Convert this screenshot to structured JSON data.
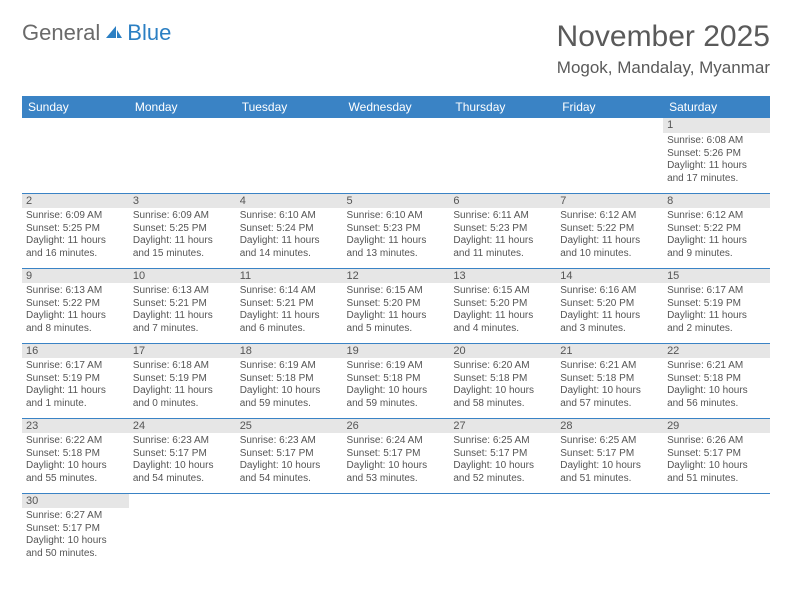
{
  "logo": {
    "general": "General",
    "blue": "Blue"
  },
  "header": {
    "month_title": "November 2025",
    "location": "Mogok, Mandalay, Myanmar"
  },
  "colors": {
    "header_bg": "#3a83c5",
    "header_text": "#ffffff",
    "daynum_bg": "#e6e6e6",
    "border": "#3a83c5",
    "text": "#555555"
  },
  "days_of_week": [
    "Sunday",
    "Monday",
    "Tuesday",
    "Wednesday",
    "Thursday",
    "Friday",
    "Saturday"
  ],
  "weeks": [
    [
      null,
      null,
      null,
      null,
      null,
      null,
      {
        "n": "1",
        "sr": "Sunrise: 6:08 AM",
        "ss": "Sunset: 5:26 PM",
        "dl": "Daylight: 11 hours and 17 minutes."
      }
    ],
    [
      {
        "n": "2",
        "sr": "Sunrise: 6:09 AM",
        "ss": "Sunset: 5:25 PM",
        "dl": "Daylight: 11 hours and 16 minutes."
      },
      {
        "n": "3",
        "sr": "Sunrise: 6:09 AM",
        "ss": "Sunset: 5:25 PM",
        "dl": "Daylight: 11 hours and 15 minutes."
      },
      {
        "n": "4",
        "sr": "Sunrise: 6:10 AM",
        "ss": "Sunset: 5:24 PM",
        "dl": "Daylight: 11 hours and 14 minutes."
      },
      {
        "n": "5",
        "sr": "Sunrise: 6:10 AM",
        "ss": "Sunset: 5:23 PM",
        "dl": "Daylight: 11 hours and 13 minutes."
      },
      {
        "n": "6",
        "sr": "Sunrise: 6:11 AM",
        "ss": "Sunset: 5:23 PM",
        "dl": "Daylight: 11 hours and 11 minutes."
      },
      {
        "n": "7",
        "sr": "Sunrise: 6:12 AM",
        "ss": "Sunset: 5:22 PM",
        "dl": "Daylight: 11 hours and 10 minutes."
      },
      {
        "n": "8",
        "sr": "Sunrise: 6:12 AM",
        "ss": "Sunset: 5:22 PM",
        "dl": "Daylight: 11 hours and 9 minutes."
      }
    ],
    [
      {
        "n": "9",
        "sr": "Sunrise: 6:13 AM",
        "ss": "Sunset: 5:22 PM",
        "dl": "Daylight: 11 hours and 8 minutes."
      },
      {
        "n": "10",
        "sr": "Sunrise: 6:13 AM",
        "ss": "Sunset: 5:21 PM",
        "dl": "Daylight: 11 hours and 7 minutes."
      },
      {
        "n": "11",
        "sr": "Sunrise: 6:14 AM",
        "ss": "Sunset: 5:21 PM",
        "dl": "Daylight: 11 hours and 6 minutes."
      },
      {
        "n": "12",
        "sr": "Sunrise: 6:15 AM",
        "ss": "Sunset: 5:20 PM",
        "dl": "Daylight: 11 hours and 5 minutes."
      },
      {
        "n": "13",
        "sr": "Sunrise: 6:15 AM",
        "ss": "Sunset: 5:20 PM",
        "dl": "Daylight: 11 hours and 4 minutes."
      },
      {
        "n": "14",
        "sr": "Sunrise: 6:16 AM",
        "ss": "Sunset: 5:20 PM",
        "dl": "Daylight: 11 hours and 3 minutes."
      },
      {
        "n": "15",
        "sr": "Sunrise: 6:17 AM",
        "ss": "Sunset: 5:19 PM",
        "dl": "Daylight: 11 hours and 2 minutes."
      }
    ],
    [
      {
        "n": "16",
        "sr": "Sunrise: 6:17 AM",
        "ss": "Sunset: 5:19 PM",
        "dl": "Daylight: 11 hours and 1 minute."
      },
      {
        "n": "17",
        "sr": "Sunrise: 6:18 AM",
        "ss": "Sunset: 5:19 PM",
        "dl": "Daylight: 11 hours and 0 minutes."
      },
      {
        "n": "18",
        "sr": "Sunrise: 6:19 AM",
        "ss": "Sunset: 5:18 PM",
        "dl": "Daylight: 10 hours and 59 minutes."
      },
      {
        "n": "19",
        "sr": "Sunrise: 6:19 AM",
        "ss": "Sunset: 5:18 PM",
        "dl": "Daylight: 10 hours and 59 minutes."
      },
      {
        "n": "20",
        "sr": "Sunrise: 6:20 AM",
        "ss": "Sunset: 5:18 PM",
        "dl": "Daylight: 10 hours and 58 minutes."
      },
      {
        "n": "21",
        "sr": "Sunrise: 6:21 AM",
        "ss": "Sunset: 5:18 PM",
        "dl": "Daylight: 10 hours and 57 minutes."
      },
      {
        "n": "22",
        "sr": "Sunrise: 6:21 AM",
        "ss": "Sunset: 5:18 PM",
        "dl": "Daylight: 10 hours and 56 minutes."
      }
    ],
    [
      {
        "n": "23",
        "sr": "Sunrise: 6:22 AM",
        "ss": "Sunset: 5:18 PM",
        "dl": "Daylight: 10 hours and 55 minutes."
      },
      {
        "n": "24",
        "sr": "Sunrise: 6:23 AM",
        "ss": "Sunset: 5:17 PM",
        "dl": "Daylight: 10 hours and 54 minutes."
      },
      {
        "n": "25",
        "sr": "Sunrise: 6:23 AM",
        "ss": "Sunset: 5:17 PM",
        "dl": "Daylight: 10 hours and 54 minutes."
      },
      {
        "n": "26",
        "sr": "Sunrise: 6:24 AM",
        "ss": "Sunset: 5:17 PM",
        "dl": "Daylight: 10 hours and 53 minutes."
      },
      {
        "n": "27",
        "sr": "Sunrise: 6:25 AM",
        "ss": "Sunset: 5:17 PM",
        "dl": "Daylight: 10 hours and 52 minutes."
      },
      {
        "n": "28",
        "sr": "Sunrise: 6:25 AM",
        "ss": "Sunset: 5:17 PM",
        "dl": "Daylight: 10 hours and 51 minutes."
      },
      {
        "n": "29",
        "sr": "Sunrise: 6:26 AM",
        "ss": "Sunset: 5:17 PM",
        "dl": "Daylight: 10 hours and 51 minutes."
      }
    ],
    [
      {
        "n": "30",
        "sr": "Sunrise: 6:27 AM",
        "ss": "Sunset: 5:17 PM",
        "dl": "Daylight: 10 hours and 50 minutes."
      },
      null,
      null,
      null,
      null,
      null,
      null
    ]
  ]
}
